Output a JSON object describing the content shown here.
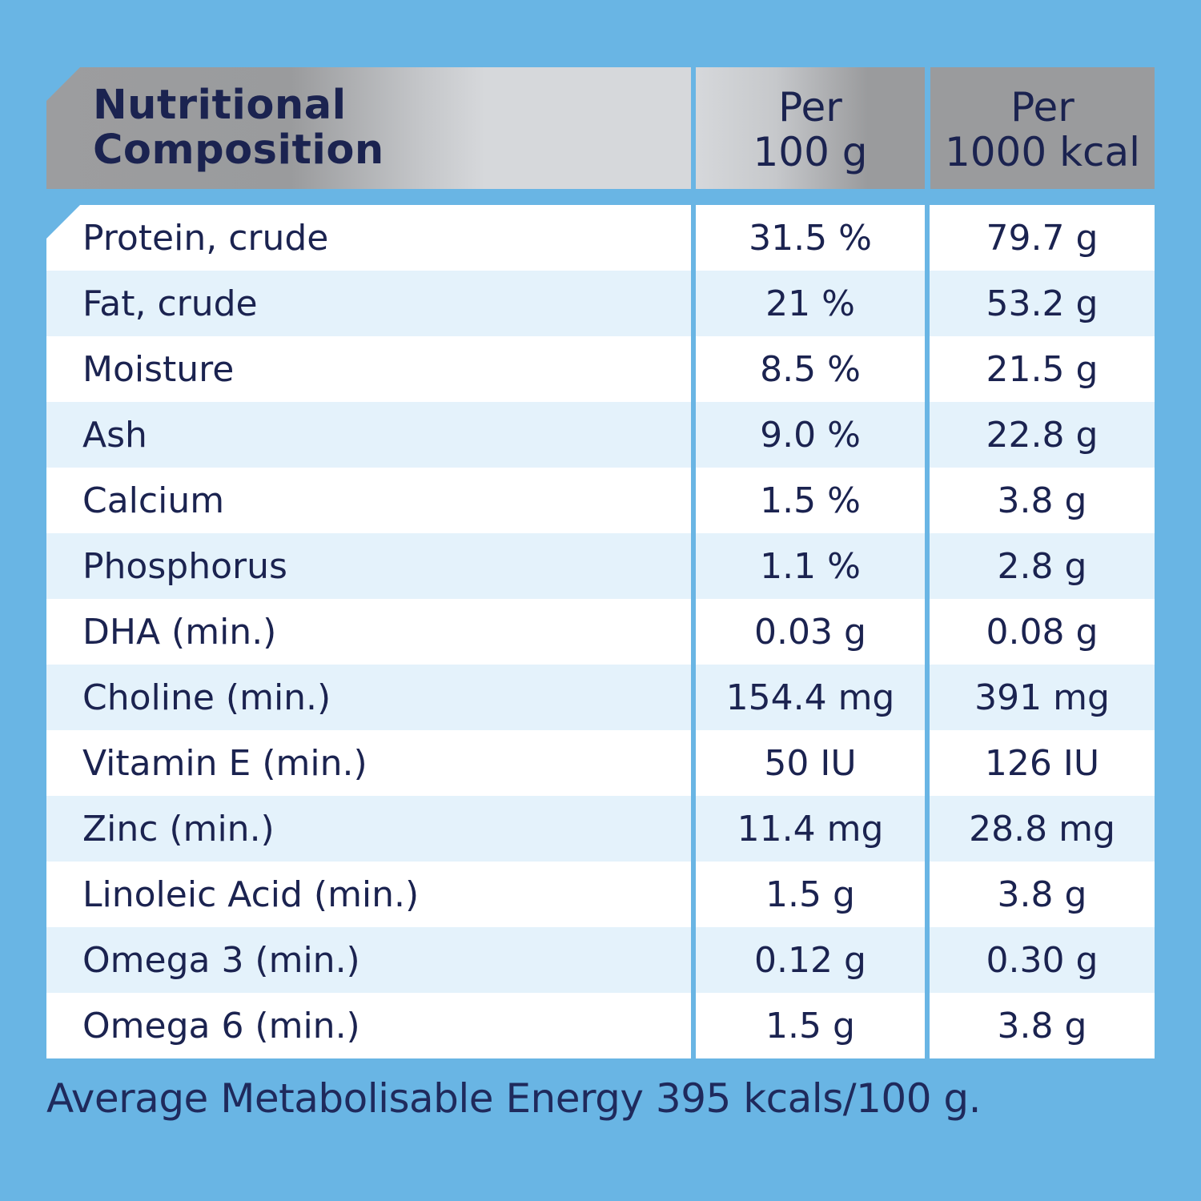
{
  "header": {
    "title_line1": "Nutritional",
    "title_line2": "Composition",
    "col2_line1": "Per",
    "col2_line2": "100 g",
    "col3_line1": "Per",
    "col3_line2": "1000 kcal"
  },
  "rows": [
    {
      "name": "Protein, crude",
      "per100g": "31.5 %",
      "per1000kcal": "79.7 g"
    },
    {
      "name": "Fat, crude",
      "per100g": "21 %",
      "per1000kcal": "53.2 g"
    },
    {
      "name": "Moisture",
      "per100g": "8.5 %",
      "per1000kcal": "21.5 g"
    },
    {
      "name": "Ash",
      "per100g": "9.0 %",
      "per1000kcal": "22.8 g"
    },
    {
      "name": "Calcium",
      "per100g": "1.5 %",
      "per1000kcal": "3.8 g"
    },
    {
      "name": "Phosphorus",
      "per100g": "1.1 %",
      "per1000kcal": "2.8 g"
    },
    {
      "name": "DHA (min.)",
      "per100g": "0.03 g",
      "per1000kcal": "0.08 g"
    },
    {
      "name": "Choline (min.)",
      "per100g": "154.4 mg",
      "per1000kcal": "391 mg"
    },
    {
      "name": "Vitamin E (min.)",
      "per100g": "50 IU",
      "per1000kcal": "126 IU"
    },
    {
      "name": "Zinc (min.)",
      "per100g": "11.4 mg",
      "per1000kcal": "28.8 mg"
    },
    {
      "name": "Linoleic Acid (min.)",
      "per100g": "1.5 g",
      "per1000kcal": "3.8 g"
    },
    {
      "name": "Omega 3 (min.)",
      "per100g": "0.12 g",
      "per1000kcal": "0.30 g"
    },
    {
      "name": "Omega 6 (min.)",
      "per100g": "1.5 g",
      "per1000kcal": "3.8 g"
    }
  ],
  "footer": "Average Metabolisable Energy 395 kcals/100 g.",
  "colors": {
    "background": "#69b5e4",
    "text": "#1b2350",
    "row_alt": "#e4f2fb"
  }
}
